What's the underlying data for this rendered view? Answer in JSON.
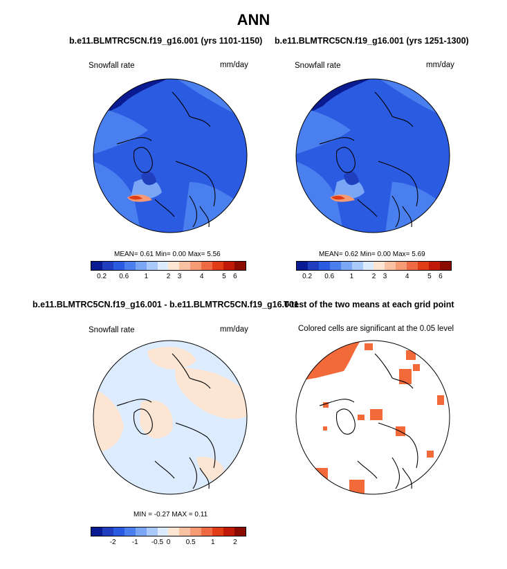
{
  "figure": {
    "title": "ANN"
  },
  "panels": {
    "p1": {
      "case_title": "b.e11.BLMTRC5CN.f19_g16.001 (yrs 1101-1150)",
      "variable": "Snowfall rate",
      "units": "mm/day",
      "stats": {
        "mean_label": "MEAN=",
        "mean": "0.61",
        "min_label": "Min=",
        "min": "0.00",
        "max_label": "Max=",
        "max": "5.56"
      }
    },
    "p2": {
      "case_title": "b.e11.BLMTRC5CN.f19_g16.001 (yrs 1251-1300)",
      "variable": "Snowfall rate",
      "units": "mm/day",
      "stats": {
        "mean_label": "MEAN=",
        "mean": "0.62",
        "min_label": "Min=",
        "min": "0.00",
        "max_label": "Max=",
        "max": "5.69"
      }
    },
    "p3": {
      "diff_title": "b.e11.BLMTRC5CN.f19_g16.001 - b.e11.BLMTRC5CN.f19_g16.001",
      "variable": "Snowfall rate",
      "units": "mm/day",
      "stats": {
        "min_label": "MIN =",
        "min": "-0.27",
        "max_label": "MAX =",
        "max": "0.11"
      }
    },
    "p4": {
      "ttest_title": "T-test of the two means at each grid point",
      "subtitle": "Colored cells are significant at the 0.05 level"
    }
  },
  "chart_data": [
    {
      "type": "heatmap",
      "title": "b.e11.BLMTRC5CN.f19_g16.001 (yrs 1101-1150)",
      "field": "Snowfall rate",
      "units": "mm/day",
      "projection": "north polar stereographic",
      "summary": {
        "mean": 0.61,
        "min": 0.0,
        "max": 5.56
      },
      "colorbar": {
        "tick_labels": [
          "0.2",
          "0.6",
          "1",
          "2",
          "3",
          "4",
          "5",
          "6"
        ],
        "colors": [
          "#0a1a90",
          "#1f3fbe",
          "#2b5be0",
          "#4a7ff0",
          "#7aa6f5",
          "#a9c9fa",
          "#dcebfd",
          "#fde5d3",
          "#f9c2a2",
          "#f59a74",
          "#ef6b44",
          "#e03d16",
          "#c01a07",
          "#8a0a00"
        ]
      }
    },
    {
      "type": "heatmap",
      "title": "b.e11.BLMTRC5CN.f19_g16.001 (yrs 1251-1300)",
      "field": "Snowfall rate",
      "units": "mm/day",
      "projection": "north polar stereographic",
      "summary": {
        "mean": 0.62,
        "min": 0.0,
        "max": 5.69
      },
      "colorbar": {
        "tick_labels": [
          "0.2",
          "0.6",
          "1",
          "2",
          "3",
          "4",
          "5",
          "6"
        ],
        "colors": [
          "#0a1a90",
          "#1f3fbe",
          "#2b5be0",
          "#4a7ff0",
          "#7aa6f5",
          "#a9c9fa",
          "#dcebfd",
          "#fde5d3",
          "#f9c2a2",
          "#f59a74",
          "#ef6b44",
          "#e03d16",
          "#c01a07",
          "#8a0a00"
        ]
      }
    },
    {
      "type": "heatmap",
      "title": "b.e11.BLMTRC5CN.f19_g16.001 - b.e11.BLMTRC5CN.f19_g16.001",
      "field": "Snowfall rate",
      "units": "mm/day",
      "projection": "north polar stereographic",
      "summary": {
        "min": -0.27,
        "max": 0.11
      },
      "colorbar": {
        "tick_labels": [
          "-2",
          "-1",
          "-0.5",
          "0",
          "0.5",
          "1",
          "2"
        ],
        "colors": [
          "#0a1a90",
          "#1f3fbe",
          "#2b5be0",
          "#4a7ff0",
          "#7aa6f5",
          "#a9c9fa",
          "#dcebfd",
          "#fde5d3",
          "#f9c2a2",
          "#f59a74",
          "#ef6b44",
          "#e03d16",
          "#c01a07",
          "#8a0a00"
        ]
      }
    },
    {
      "type": "heatmap",
      "title": "T-test of the two means at each grid point",
      "subtitle": "Colored cells are significant at the 0.05 level",
      "projection": "north polar stereographic",
      "significant_color": "#f26a3a"
    }
  ]
}
